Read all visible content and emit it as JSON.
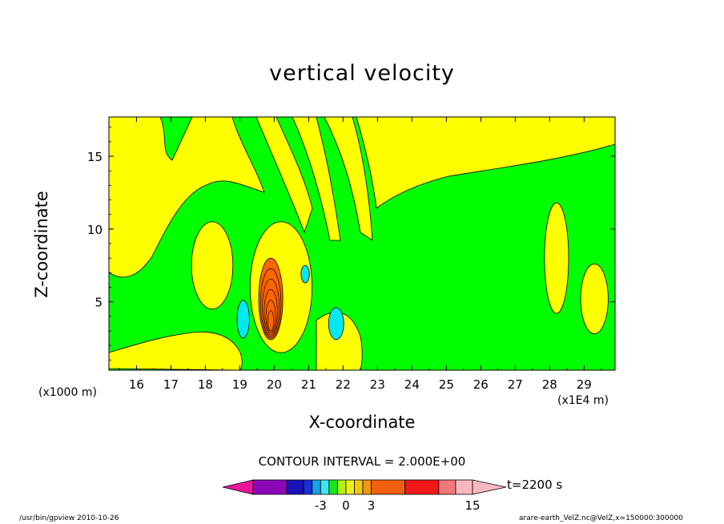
{
  "chart_data": {
    "type": "heatmap",
    "title": "vertical velocity",
    "xlabel": "X-coordinate",
    "ylabel": "Z-coordinate",
    "x_unit_left": "(x1000 m)",
    "x_unit_right": "(x1E4 m)",
    "xlim": [
      15.2,
      29.9
    ],
    "ylim": [
      0.3,
      17.7
    ],
    "xticks": [
      "16",
      "17",
      "18",
      "19",
      "20",
      "21",
      "22",
      "23",
      "24",
      "25",
      "26",
      "27",
      "28",
      "29"
    ],
    "yticks": [
      "5",
      "10",
      "15"
    ],
    "contour_interval": "CONTOUR INTERVAL = 2.000E+00",
    "time_label": "t=2200 s",
    "colorbar": {
      "tick_labels": [
        {
          "label": "-3",
          "value": -3
        },
        {
          "label": "0",
          "value": 0
        },
        {
          "label": "3",
          "value": 3
        },
        {
          "label": "15",
          "value": 15
        }
      ],
      "colors": [
        "#e8159a",
        "#8b08b8",
        "#1a12b4",
        "#1830d8",
        "#18a0e8",
        "#3ae8f0",
        "#18e618",
        "#b4f018",
        "#f0f018",
        "#f0c810",
        "#f09610",
        "#f06010",
        "#f01818",
        "#f07878",
        "#f8b8c0"
      ]
    },
    "regions": [
      {
        "value": 1,
        "color": "#ffff00",
        "shape": "ellipse",
        "cx": 18.2,
        "cy": 7.5,
        "rx": 0.6,
        "ry": 3.0
      },
      {
        "value": 1,
        "color": "#ffff00",
        "shape": "ellipse",
        "cx": 20.2,
        "cy": 6.0,
        "rx": 0.9,
        "ry": 4.5
      },
      {
        "value": 5,
        "color": "#ff6600",
        "shape": "ellipse",
        "cx": 19.9,
        "cy": 5.2,
        "rx": 0.35,
        "ry": 2.8
      },
      {
        "value": -1,
        "color": "#00e8f0",
        "shape": "ellipse",
        "cx": 19.1,
        "cy": 3.8,
        "rx": 0.18,
        "ry": 1.3
      },
      {
        "value": -1,
        "color": "#00e8f0",
        "shape": "ellipse",
        "cx": 21.8,
        "cy": 3.5,
        "rx": 0.22,
        "ry": 1.1
      },
      {
        "value": -1,
        "color": "#00e8f0",
        "shape": "ellipse",
        "cx": 20.9,
        "cy": 6.9,
        "rx": 0.12,
        "ry": 0.6
      },
      {
        "value": 1,
        "color": "#ffff00",
        "shape": "ellipse",
        "cx": 28.2,
        "cy": 8.0,
        "rx": 0.35,
        "ry": 3.8
      },
      {
        "value": 1,
        "color": "#ffff00",
        "shape": "ellipse",
        "cx": 29.3,
        "cy": 5.2,
        "rx": 0.4,
        "ry": 2.4
      }
    ]
  },
  "colors": {
    "background": "#00ff00",
    "positive": "#ffff00",
    "negative": "#00e8f0",
    "strong": "#ff6600"
  },
  "footer": {
    "left": "/usr/bin/gpview   2010-10-26",
    "right": "arare-earth_VelZ.nc@VelZ,x=150000:300000"
  }
}
